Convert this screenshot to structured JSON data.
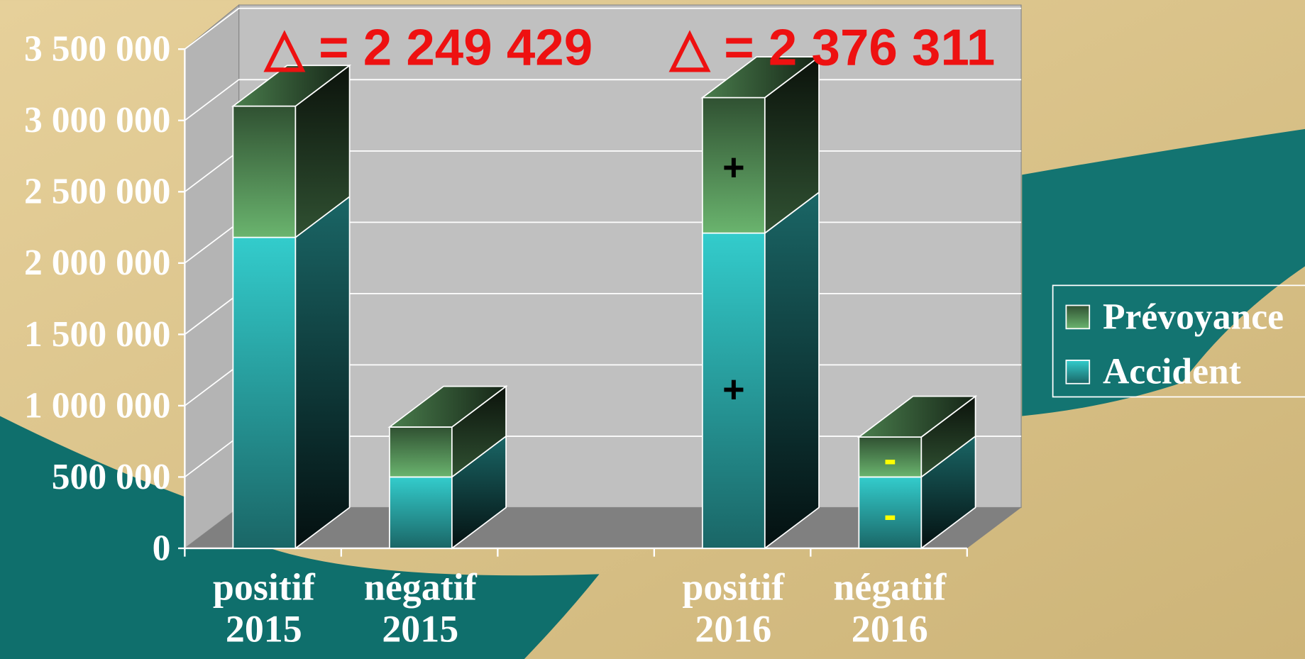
{
  "chart_data": {
    "type": "bar3d-stacked",
    "annotations": [
      "△ = 2 249 429",
      "△ = 2 376 311"
    ],
    "categories": [
      "positif 2015",
      "négatif 2015",
      null,
      "positif 2016",
      "négatif 2016"
    ],
    "series": [
      {
        "name": "Accident",
        "color": "#33cccc",
        "values": [
          2180000,
          500000,
          null,
          2210000,
          500000
        ],
        "signs": [
          null,
          null,
          null,
          "+",
          "-"
        ]
      },
      {
        "name": "Prévoyance",
        "color": "#6ab46e",
        "values": [
          920000,
          350000,
          null,
          950000,
          280000
        ],
        "signs": [
          null,
          null,
          null,
          "+",
          "-"
        ]
      }
    ],
    "ylim": [
      0,
      3500000
    ],
    "yticks": [
      0,
      {
        "value": 500000,
        "label": "500 000"
      },
      {
        "value": 1000000,
        "label": "1 000 000"
      },
      {
        "value": 1500000,
        "label": "1 500 000"
      },
      {
        "value": 2000000,
        "label": "2 000 000"
      },
      {
        "value": 2500000,
        "label": "2 500 000"
      },
      {
        "value": 3000000,
        "label": "3 000 000"
      },
      {
        "value": 3500000,
        "label": "3 500 000"
      }
    ],
    "grid": true,
    "legend": "right"
  }
}
